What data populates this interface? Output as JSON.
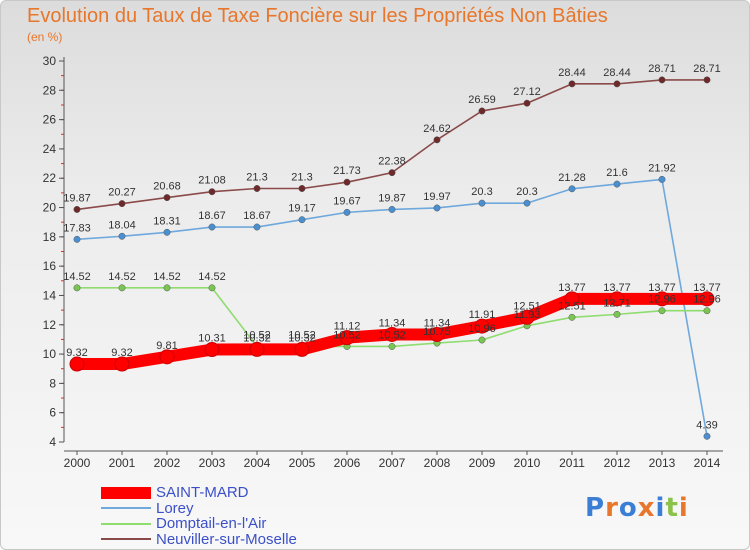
{
  "title": "Evolution du Taux de Taxe Foncière sur les Propriétés Non Bâties",
  "subtitle": "(en %)",
  "logo": "Proxiti",
  "chart_data": {
    "type": "line",
    "title": "Evolution du Taux de Taxe Foncière sur les Propriétés Non Bâties",
    "ylabel": "(en %)",
    "xlabel": "",
    "x": [
      "2000",
      "2001",
      "2002",
      "2003",
      "2004",
      "2005",
      "2006",
      "2007",
      "2008",
      "2009",
      "2010",
      "2011",
      "2012",
      "2013",
      "2014"
    ],
    "ylim": [
      4,
      30
    ],
    "yticks": [
      "4",
      "6",
      "8",
      "10",
      "12",
      "14",
      "16",
      "18",
      "20",
      "22",
      "24",
      "26",
      "28",
      "30"
    ],
    "grid": false,
    "legend_position": "bottom-left",
    "series": [
      {
        "name": "SAINT-MARD",
        "color": "#ff0000",
        "values": [
          9.32,
          9.32,
          9.81,
          10.31,
          10.32,
          10.32,
          11.12,
          11.34,
          11.34,
          11.91,
          12.51,
          13.77,
          13.77,
          13.77,
          13.77
        ],
        "labels": [
          "9.32",
          "9.32",
          "9.81",
          "10.31",
          "10.32",
          "10.32",
          "11.12",
          "11.34",
          "11.34",
          "11.91",
          "12.51",
          "13.77",
          "13.77",
          "13.77",
          "13.77"
        ]
      },
      {
        "name": "Lorey",
        "color": "#6fa8dc",
        "marker": "#4a8fd0",
        "values": [
          17.83,
          18.04,
          18.31,
          18.67,
          18.67,
          19.17,
          19.67,
          19.87,
          19.97,
          20.3,
          20.3,
          21.28,
          21.6,
          21.92,
          4.39
        ],
        "labels": [
          "17.83",
          "18.04",
          "18.31",
          "18.67",
          "18.67",
          "19.17",
          "19.67",
          "19.87",
          "19.97",
          "20.3",
          "20.3",
          "21.28",
          "21.6",
          "21.92",
          "4.39"
        ]
      },
      {
        "name": "Domptail-en-l'Air",
        "color": "#8fdc6f",
        "marker": "#7ac653",
        "values": [
          14.52,
          14.52,
          14.52,
          14.52,
          10.52,
          10.52,
          10.52,
          10.52,
          10.75,
          10.96,
          11.93,
          12.51,
          12.71,
          12.96,
          12.96
        ],
        "labels": [
          "14.52",
          "14.52",
          "14.52",
          "14.52",
          "10.52",
          "10.52",
          "10.52",
          "10.52",
          "10.75",
          "10.96",
          "11.93",
          "12.51",
          "12.71",
          "12.96",
          "12.96"
        ]
      },
      {
        "name": "Neuviller-sur-Moselle",
        "color": "#8b4a4a",
        "marker": "#6e2a2a",
        "values": [
          19.87,
          20.27,
          20.68,
          21.08,
          21.3,
          21.3,
          21.73,
          22.38,
          24.62,
          26.59,
          27.12,
          28.44,
          28.44,
          28.71,
          28.71
        ],
        "labels": [
          "19.87",
          "20.27",
          "20.68",
          "21.08",
          "21.3",
          "21.3",
          "21.73",
          "22.38",
          "24.62",
          "26.59",
          "27.12",
          "28.44",
          "28.44",
          "28.71",
          "28.71"
        ]
      }
    ]
  }
}
